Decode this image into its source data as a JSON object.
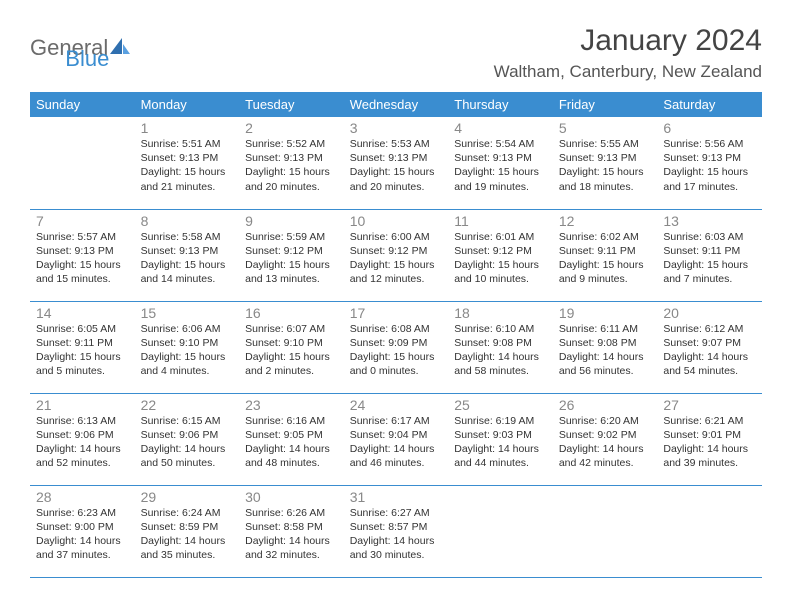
{
  "logo": {
    "textGray": "General",
    "textBlue": "Blue"
  },
  "header": {
    "monthTitle": "January 2024",
    "location": "Waltham, Canterbury, New Zealand"
  },
  "colors": {
    "headerBg": "#3a8dd0",
    "headerText": "#ffffff",
    "dayNum": "#888888",
    "bodyText": "#333333",
    "logoGray": "#6b6b6b",
    "logoBlue": "#3a8dd0"
  },
  "dayNames": [
    "Sunday",
    "Monday",
    "Tuesday",
    "Wednesday",
    "Thursday",
    "Friday",
    "Saturday"
  ],
  "weeks": [
    [
      {
        "empty": true
      },
      {
        "day": "1",
        "sunrise": "Sunrise: 5:51 AM",
        "sunset": "Sunset: 9:13 PM",
        "daylight": "Daylight: 15 hours and 21 minutes."
      },
      {
        "day": "2",
        "sunrise": "Sunrise: 5:52 AM",
        "sunset": "Sunset: 9:13 PM",
        "daylight": "Daylight: 15 hours and 20 minutes."
      },
      {
        "day": "3",
        "sunrise": "Sunrise: 5:53 AM",
        "sunset": "Sunset: 9:13 PM",
        "daylight": "Daylight: 15 hours and 20 minutes."
      },
      {
        "day": "4",
        "sunrise": "Sunrise: 5:54 AM",
        "sunset": "Sunset: 9:13 PM",
        "daylight": "Daylight: 15 hours and 19 minutes."
      },
      {
        "day": "5",
        "sunrise": "Sunrise: 5:55 AM",
        "sunset": "Sunset: 9:13 PM",
        "daylight": "Daylight: 15 hours and 18 minutes."
      },
      {
        "day": "6",
        "sunrise": "Sunrise: 5:56 AM",
        "sunset": "Sunset: 9:13 PM",
        "daylight": "Daylight: 15 hours and 17 minutes."
      }
    ],
    [
      {
        "day": "7",
        "sunrise": "Sunrise: 5:57 AM",
        "sunset": "Sunset: 9:13 PM",
        "daylight": "Daylight: 15 hours and 15 minutes."
      },
      {
        "day": "8",
        "sunrise": "Sunrise: 5:58 AM",
        "sunset": "Sunset: 9:13 PM",
        "daylight": "Daylight: 15 hours and 14 minutes."
      },
      {
        "day": "9",
        "sunrise": "Sunrise: 5:59 AM",
        "sunset": "Sunset: 9:12 PM",
        "daylight": "Daylight: 15 hours and 13 minutes."
      },
      {
        "day": "10",
        "sunrise": "Sunrise: 6:00 AM",
        "sunset": "Sunset: 9:12 PM",
        "daylight": "Daylight: 15 hours and 12 minutes."
      },
      {
        "day": "11",
        "sunrise": "Sunrise: 6:01 AM",
        "sunset": "Sunset: 9:12 PM",
        "daylight": "Daylight: 15 hours and 10 minutes."
      },
      {
        "day": "12",
        "sunrise": "Sunrise: 6:02 AM",
        "sunset": "Sunset: 9:11 PM",
        "daylight": "Daylight: 15 hours and 9 minutes."
      },
      {
        "day": "13",
        "sunrise": "Sunrise: 6:03 AM",
        "sunset": "Sunset: 9:11 PM",
        "daylight": "Daylight: 15 hours and 7 minutes."
      }
    ],
    [
      {
        "day": "14",
        "sunrise": "Sunrise: 6:05 AM",
        "sunset": "Sunset: 9:11 PM",
        "daylight": "Daylight: 15 hours and 5 minutes."
      },
      {
        "day": "15",
        "sunrise": "Sunrise: 6:06 AM",
        "sunset": "Sunset: 9:10 PM",
        "daylight": "Daylight: 15 hours and 4 minutes."
      },
      {
        "day": "16",
        "sunrise": "Sunrise: 6:07 AM",
        "sunset": "Sunset: 9:10 PM",
        "daylight": "Daylight: 15 hours and 2 minutes."
      },
      {
        "day": "17",
        "sunrise": "Sunrise: 6:08 AM",
        "sunset": "Sunset: 9:09 PM",
        "daylight": "Daylight: 15 hours and 0 minutes."
      },
      {
        "day": "18",
        "sunrise": "Sunrise: 6:10 AM",
        "sunset": "Sunset: 9:08 PM",
        "daylight": "Daylight: 14 hours and 58 minutes."
      },
      {
        "day": "19",
        "sunrise": "Sunrise: 6:11 AM",
        "sunset": "Sunset: 9:08 PM",
        "daylight": "Daylight: 14 hours and 56 minutes."
      },
      {
        "day": "20",
        "sunrise": "Sunrise: 6:12 AM",
        "sunset": "Sunset: 9:07 PM",
        "daylight": "Daylight: 14 hours and 54 minutes."
      }
    ],
    [
      {
        "day": "21",
        "sunrise": "Sunrise: 6:13 AM",
        "sunset": "Sunset: 9:06 PM",
        "daylight": "Daylight: 14 hours and 52 minutes."
      },
      {
        "day": "22",
        "sunrise": "Sunrise: 6:15 AM",
        "sunset": "Sunset: 9:06 PM",
        "daylight": "Daylight: 14 hours and 50 minutes."
      },
      {
        "day": "23",
        "sunrise": "Sunrise: 6:16 AM",
        "sunset": "Sunset: 9:05 PM",
        "daylight": "Daylight: 14 hours and 48 minutes."
      },
      {
        "day": "24",
        "sunrise": "Sunrise: 6:17 AM",
        "sunset": "Sunset: 9:04 PM",
        "daylight": "Daylight: 14 hours and 46 minutes."
      },
      {
        "day": "25",
        "sunrise": "Sunrise: 6:19 AM",
        "sunset": "Sunset: 9:03 PM",
        "daylight": "Daylight: 14 hours and 44 minutes."
      },
      {
        "day": "26",
        "sunrise": "Sunrise: 6:20 AM",
        "sunset": "Sunset: 9:02 PM",
        "daylight": "Daylight: 14 hours and 42 minutes."
      },
      {
        "day": "27",
        "sunrise": "Sunrise: 6:21 AM",
        "sunset": "Sunset: 9:01 PM",
        "daylight": "Daylight: 14 hours and 39 minutes."
      }
    ],
    [
      {
        "day": "28",
        "sunrise": "Sunrise: 6:23 AM",
        "sunset": "Sunset: 9:00 PM",
        "daylight": "Daylight: 14 hours and 37 minutes."
      },
      {
        "day": "29",
        "sunrise": "Sunrise: 6:24 AM",
        "sunset": "Sunset: 8:59 PM",
        "daylight": "Daylight: 14 hours and 35 minutes."
      },
      {
        "day": "30",
        "sunrise": "Sunrise: 6:26 AM",
        "sunset": "Sunset: 8:58 PM",
        "daylight": "Daylight: 14 hours and 32 minutes."
      },
      {
        "day": "31",
        "sunrise": "Sunrise: 6:27 AM",
        "sunset": "Sunset: 8:57 PM",
        "daylight": "Daylight: 14 hours and 30 minutes."
      },
      {
        "empty": true
      },
      {
        "empty": true
      },
      {
        "empty": true
      }
    ]
  ]
}
